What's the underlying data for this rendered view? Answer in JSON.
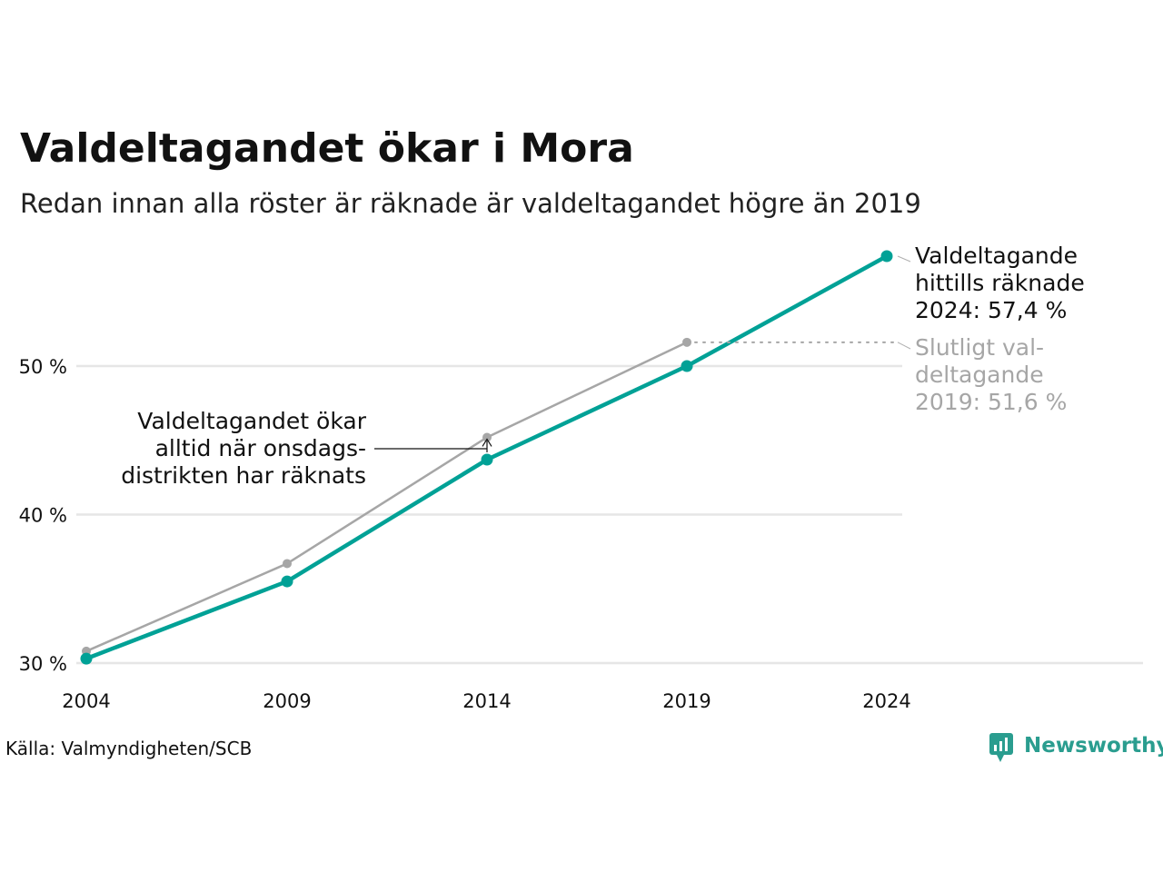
{
  "title": "Valdeltagandet ökar i Mora",
  "subtitle": "Redan innan alla röster är räknade är valdeltagandet högre än 2019",
  "source": "Källa: Valmyndigheten/SCB",
  "brand": "Newsworthy",
  "colors": {
    "current": "#00a196",
    "final": "#a6a6a6",
    "grid": "#e6e6e6",
    "brand": "#2a9d8f"
  },
  "annotations": {
    "current_lines": [
      "Valdeltagande",
      "hittills räknade",
      "2024: 57,4 %"
    ],
    "final_lines": [
      "Slutligt val-",
      "deltagande",
      "2019: 51,6 %"
    ],
    "note_lines": [
      "Valdeltagandet ökar",
      "alltid när onsdags-",
      "distrikten har räknats"
    ]
  },
  "chart_data": {
    "type": "line",
    "categories": [
      "2004",
      "2009",
      "2014",
      "2019",
      "2024"
    ],
    "y_ticks": [
      {
        "value": 30,
        "label": "30 %"
      },
      {
        "value": 40,
        "label": "40 %"
      },
      {
        "value": 50,
        "label": "50 %"
      }
    ],
    "ylim": [
      29,
      58
    ],
    "grid": true,
    "series": [
      {
        "key": "final",
        "values": [
          30.8,
          36.7,
          45.2,
          51.6,
          null
        ]
      },
      {
        "key": "current",
        "values": [
          30.3,
          35.5,
          43.7,
          50.0,
          57.4
        ]
      }
    ]
  }
}
